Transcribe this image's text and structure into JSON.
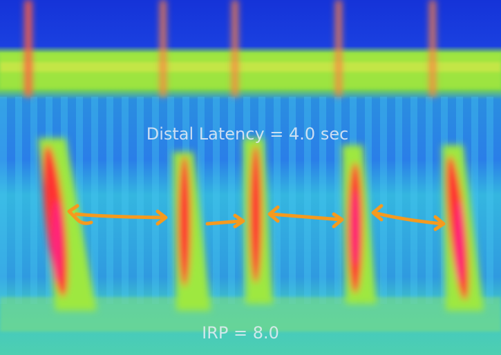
{
  "annotations": {
    "distal_latency": "Distal Latency = 4.0 sec",
    "irp": "IRP = 8.0"
  }
}
